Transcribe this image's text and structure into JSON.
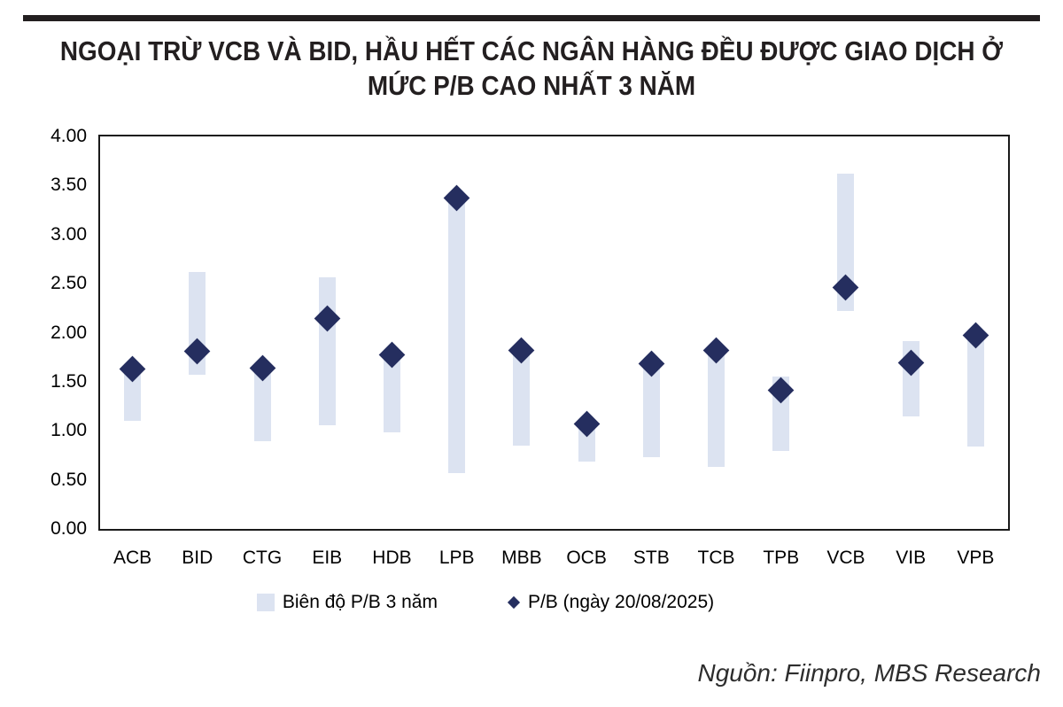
{
  "header": {
    "title_lines": [
      "NGOẠI TRỪ VCB VÀ BID, HẦU HẾT CÁC NGÂN HÀNG ĐỀU ĐƯỢC GIAO DỊCH Ở",
      "MỨC P/B CAO NHẤT 3 NĂM"
    ]
  },
  "chart_data": {
    "type": "bar",
    "subtype": "floating-range-bars-with-diamond-markers",
    "categories": [
      "ACB",
      "BID",
      "CTG",
      "EIB",
      "HDB",
      "LPB",
      "MBB",
      "OCB",
      "STB",
      "TCB",
      "TPB",
      "VCB",
      "VIB",
      "VPB"
    ],
    "series": [
      {
        "name": "Biên độ P/B 3 năm",
        "type": "range-bar",
        "low": [
          1.1,
          1.57,
          0.89,
          1.06,
          0.98,
          0.57,
          0.85,
          0.69,
          0.73,
          0.63,
          0.79,
          2.22,
          1.15,
          0.84
        ],
        "high": [
          1.63,
          2.62,
          1.64,
          2.56,
          1.77,
          3.37,
          1.82,
          1.07,
          1.68,
          1.82,
          1.55,
          3.62,
          1.91,
          1.97
        ]
      },
      {
        "name": "P/B (ngày 20/08/2025)",
        "type": "scatter-diamond",
        "values": [
          1.63,
          1.81,
          1.64,
          2.14,
          1.77,
          3.37,
          1.82,
          1.07,
          1.68,
          1.82,
          1.41,
          2.46,
          1.69,
          1.97
        ]
      }
    ],
    "ylim": [
      0,
      4
    ],
    "yticks": [
      "4.00",
      "3.50",
      "3.00",
      "2.50",
      "2.00",
      "1.50",
      "1.00",
      "0.50",
      "0.00"
    ],
    "xlabel": "",
    "ylabel": "",
    "grid": false,
    "legend_position": "bottom",
    "colors": {
      "range_bar": "#dce3f1",
      "marker": "#252e5f"
    }
  },
  "footer": {
    "source": "Nguồn: Fiinpro, MBS Research"
  }
}
